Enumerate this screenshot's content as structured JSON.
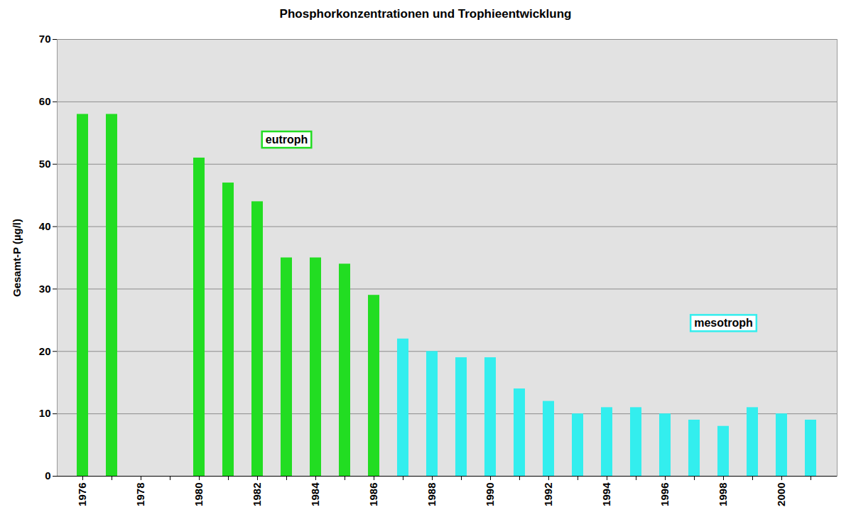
{
  "chart_data": {
    "type": "bar",
    "title": "Phosphorkonzentrationen und Trophieentwicklung",
    "y_label": "Gesamt-P (µg/l)",
    "categories": [
      "1976",
      null,
      "1978",
      null,
      "1980",
      null,
      "1982",
      null,
      "1984",
      null,
      "1986",
      null,
      "1988",
      null,
      "1990",
      null,
      "1992",
      null,
      "1994",
      null,
      "1996",
      null,
      "1998",
      null,
      "2000",
      null
    ],
    "values": [
      58,
      58,
      null,
      null,
      51,
      47,
      44,
      35,
      35,
      34,
      29,
      22,
      20,
      19,
      19,
      14,
      12,
      10,
      11,
      11,
      10,
      9,
      8,
      11,
      10,
      9
    ],
    "colors": [
      "#22dd22",
      "#22dd22",
      "#22dd22",
      "#22dd22",
      "#22dd22",
      "#22dd22",
      "#22dd22",
      "#22dd22",
      "#22dd22",
      "#22dd22",
      "#22dd22",
      "#33eeee",
      "#33eeee",
      "#33eeee",
      "#33eeee",
      "#33eeee",
      "#33eeee",
      "#33eeee",
      "#33eeee",
      "#33eeee",
      "#33eeee",
      "#33eeee",
      "#33eeee",
      "#33eeee",
      "#33eeee",
      "#33eeee"
    ],
    "annotations": [
      {
        "text": "eutroph",
        "color": "#22dd22"
      },
      {
        "text": "mesotroph",
        "color": "#33eeee"
      }
    ],
    "ylim": [
      0,
      70
    ],
    "yticks": [
      0,
      10,
      20,
      30,
      40,
      50,
      60,
      70
    ],
    "grid": true
  }
}
